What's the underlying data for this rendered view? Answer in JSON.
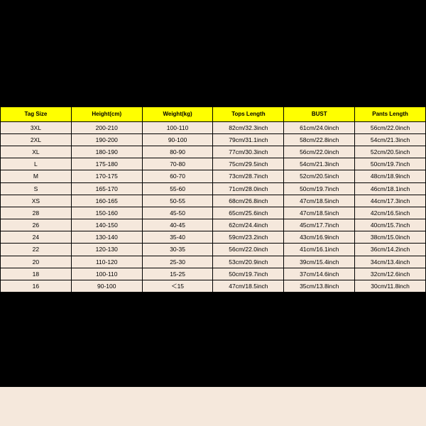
{
  "background_color": "#000000",
  "table_bg_color": "#f5e8dc",
  "header_bg_color": "#ffff00",
  "border_color": "#000000",
  "header_font_size": 8,
  "cell_font_size": 8.5,
  "columns": [
    "Tag Size",
    "Height(cm)",
    "Weight(kg)",
    "Tops Length",
    "BUST",
    "Pants Length"
  ],
  "rows": [
    [
      "3XL",
      "200-210",
      "100-110",
      "82cm/32.3inch",
      "61cm/24.0inch",
      "56cm/22.0inch"
    ],
    [
      "2XL",
      "190-200",
      "90-100",
      "79cm/31.1inch",
      "58cm/22.8inch",
      "54cm/21.3inch"
    ],
    [
      "XL",
      "180-190",
      "80-90",
      "77cm/30.3inch",
      "56cm/22.0inch",
      "52cm/20.5inch"
    ],
    [
      "L",
      "175-180",
      "70-80",
      "75cm/29.5inch",
      "54cm/21.3inch",
      "50cm/19.7inch"
    ],
    [
      "M",
      "170-175",
      "60-70",
      "73cm/28.7inch",
      "52cm/20.5inch",
      "48cm/18.9inch"
    ],
    [
      "S",
      "165-170",
      "55-60",
      "71cm/28.0inch",
      "50cm/19.7inch",
      "46cm/18.1inch"
    ],
    [
      "XS",
      "160-165",
      "50-55",
      "68cm/26.8inch",
      "47cm/18.5inch",
      "44cm/17.3inch"
    ],
    [
      "28",
      "150-160",
      "45-50",
      "65cm/25.6inch",
      "47cm/18.5inch",
      "42cm/16.5inch"
    ],
    [
      "26",
      "140-150",
      "40-45",
      "62cm/24.4inch",
      "45cm/17.7inch",
      "40cm/15.7inch"
    ],
    [
      "24",
      "130-140",
      "35-40",
      "59cm/23.2inch",
      "43cm/16.9inch",
      "38cm/15.0inch"
    ],
    [
      "22",
      "120-130",
      "30-35",
      "56cm/22.0inch",
      "41cm/16.1inch",
      "36cm/14.2inch"
    ],
    [
      "20",
      "110-120",
      "25-30",
      "53cm/20.9inch",
      "39cm/15.4inch",
      "34cm/13.4inch"
    ],
    [
      "18",
      "100-110",
      "15-25",
      "50cm/19.7inch",
      "37cm/14.6inch",
      "32cm/12.6inch"
    ],
    [
      "16",
      "90-100",
      "＜15",
      "47cm/18.5inch",
      "35cm/13.8inch",
      "30cm/11.8inch"
    ]
  ]
}
